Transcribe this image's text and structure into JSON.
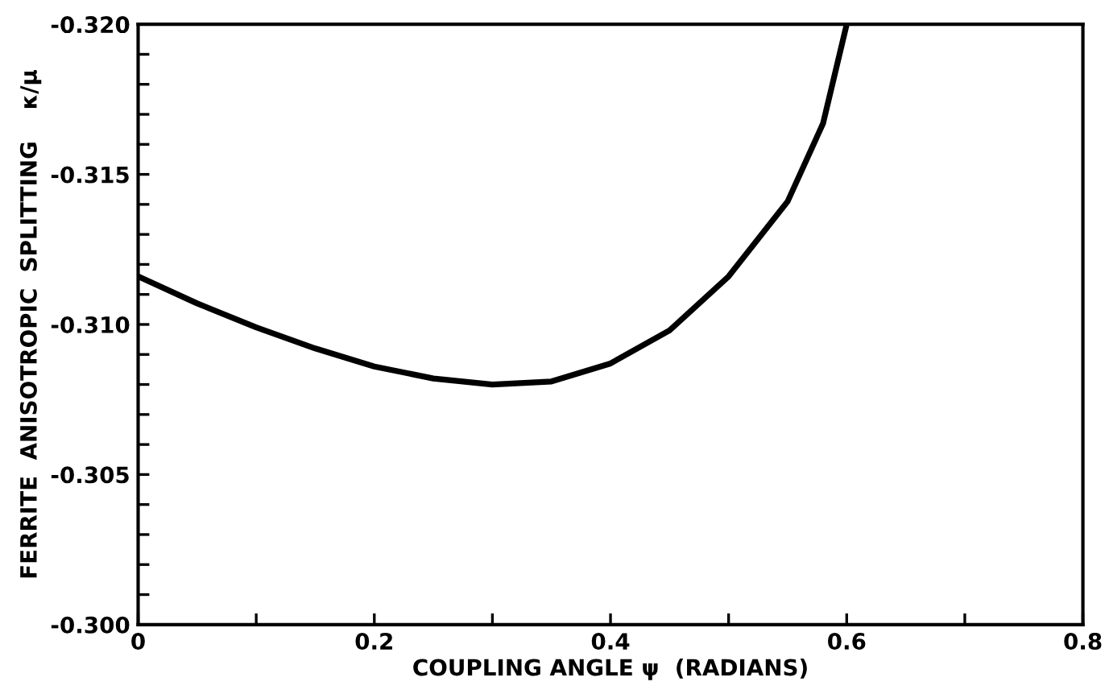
{
  "chart_data": {
    "type": "line",
    "xlabel": "COUPLING ANGLE ψ  (RADIANS)",
    "ylabel": "FERRITE  ANISOTROPIC  SPLITTING    κ/μ",
    "x": [
      0,
      0.05,
      0.1,
      0.15,
      0.2,
      0.25,
      0.3,
      0.35,
      0.4,
      0.45,
      0.5,
      0.55,
      0.58,
      0.6
    ],
    "series": [
      {
        "color": "#000000",
        "values": [
          -0.3116,
          -0.3107,
          -0.3099,
          -0.3092,
          -0.3086,
          -0.3082,
          -0.308,
          -0.3081,
          -0.3087,
          -0.3098,
          -0.3116,
          -0.3141,
          -0.3167,
          -0.32
        ]
      }
    ],
    "xlim": [
      0,
      0.8
    ],
    "ylim": [
      -0.3,
      -0.32
    ],
    "xticks": [
      0,
      {
        "value": 0.1,
        "label": null
      },
      0.2,
      {
        "value": 0.3,
        "label": null
      },
      0.4,
      {
        "value": 0.5,
        "label": null
      },
      0.6,
      {
        "value": 0.7,
        "label": null
      },
      0.8
    ],
    "yticks": [
      {
        "value": -0.3,
        "label": "-0.300"
      },
      {
        "value": -0.301,
        "label": null
      },
      {
        "value": -0.302,
        "label": null
      },
      {
        "value": -0.303,
        "label": null
      },
      {
        "value": -0.304,
        "label": null
      },
      {
        "value": -0.305,
        "label": "-0.305"
      },
      {
        "value": -0.306,
        "label": null
      },
      {
        "value": -0.307,
        "label": null
      },
      {
        "value": -0.308,
        "label": null
      },
      {
        "value": -0.309,
        "label": null
      },
      {
        "value": -0.31,
        "label": "-0.310"
      },
      {
        "value": -0.311,
        "label": null
      },
      {
        "value": -0.312,
        "label": null
      },
      {
        "value": -0.313,
        "label": null
      },
      {
        "value": -0.314,
        "label": null
      },
      {
        "value": -0.315,
        "label": "-0.315"
      },
      {
        "value": -0.316,
        "label": null
      },
      {
        "value": -0.317,
        "label": null
      },
      {
        "value": -0.318,
        "label": null
      },
      {
        "value": -0.319,
        "label": null
      },
      {
        "value": -0.32,
        "label": "-0.320"
      }
    ],
    "grid": false,
    "legend": false,
    "marker": "none",
    "line_style": "solid"
  }
}
